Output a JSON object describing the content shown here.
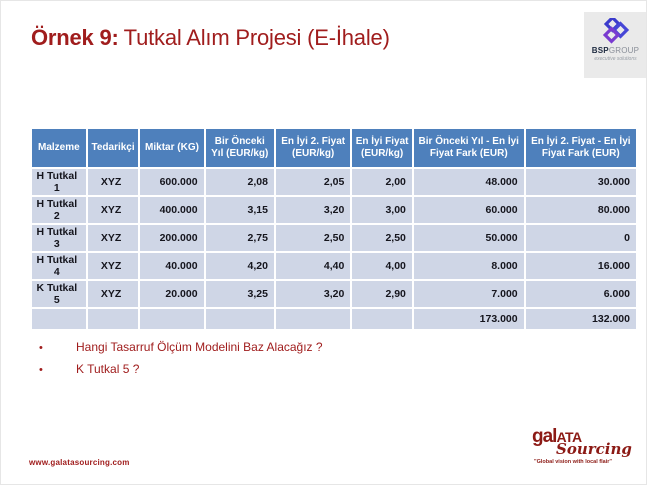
{
  "title": {
    "prefix": "Örnek 9:",
    "rest": "Tutkal Alım Projesi (E-İhale)"
  },
  "logos": {
    "bsp": {
      "bold": "BSP",
      "light": "GROUP",
      "tagline": "executive solutions"
    },
    "galata": {
      "name_lower": "gal",
      "name_caps": "ATA",
      "script": "Sourcing",
      "tagline": "\"Global vision with local flair\""
    }
  },
  "table": {
    "headers": [
      "Malzeme",
      "Tedarikçi",
      "Miktar (KG)",
      "Bir Önceki Yıl (EUR/kg)",
      "En İyi 2. Fiyat (EUR/kg)",
      "En İyi Fiyat (EUR/kg)",
      "Bir Önceki Yıl - En İyi Fiyat Fark (EUR)",
      "En İyi 2. Fiyat - En İyi Fiyat Fark (EUR)"
    ],
    "rows": [
      [
        "H Tutkal 1",
        "XYZ",
        "600.000",
        "2,08",
        "2,05",
        "2,00",
        "48.000",
        "30.000"
      ],
      [
        "H Tutkal 2",
        "XYZ",
        "400.000",
        "3,15",
        "3,20",
        "3,00",
        "60.000",
        "80.000"
      ],
      [
        "H Tutkal 3",
        "XYZ",
        "200.000",
        "2,75",
        "2,50",
        "2,50",
        "50.000",
        "0"
      ],
      [
        "H Tutkal 4",
        "XYZ",
        "40.000",
        "4,20",
        "4,40",
        "4,00",
        "8.000",
        "16.000"
      ],
      [
        "K Tutkal 5",
        "XYZ",
        "20.000",
        "3,25",
        "3,20",
        "2,90",
        "7.000",
        "6.000"
      ]
    ],
    "totals": [
      "173.000",
      "132.000"
    ]
  },
  "bullets": [
    "Hangi Tasarruf Ölçüm Modelini Baz Alacağız ?",
    "K Tutkal 5 ?"
  ],
  "footer": {
    "website": "www.galatasourcing.com"
  },
  "colors": {
    "accent_red": "#a01d1d",
    "header_blue": "#4e80bc",
    "row_bg": "#cfd6e6",
    "logo_blue": "#3b3bcc",
    "logo_purple": "#7a3bd0"
  }
}
